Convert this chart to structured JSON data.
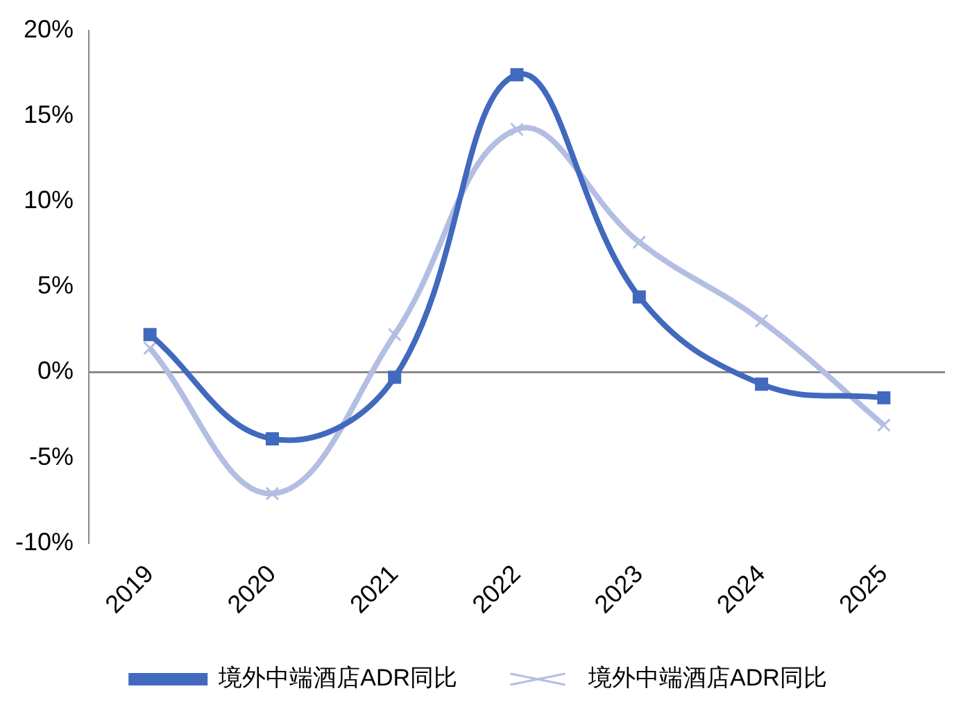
{
  "chart_data": {
    "type": "line",
    "categories": [
      "2019",
      "2020",
      "2021",
      "2022",
      "2023",
      "2024",
      "2025"
    ],
    "series": [
      {
        "name": "境外中端酒店ADR同比",
        "color": "#4169be",
        "marker": "square",
        "values": [
          2.2,
          -3.9,
          -0.3,
          17.4,
          4.4,
          -0.7,
          -1.5
        ]
      },
      {
        "name": "境外中端酒店ADR同比",
        "color": "#b4bee2",
        "marker": "cross",
        "values": [
          1.4,
          -7.1,
          2.2,
          14.2,
          7.6,
          3.0,
          -3.1
        ]
      }
    ],
    "ylim": [
      -10,
      20
    ],
    "yticks": [
      {
        "value": -10,
        "label": "-10%"
      },
      {
        "value": -5,
        "label": "-5%"
      },
      {
        "value": 0,
        "label": "0%"
      },
      {
        "value": 5,
        "label": "5%"
      },
      {
        "value": 10,
        "label": "10%"
      },
      {
        "value": 15,
        "label": "15%"
      },
      {
        "value": 20,
        "label": "20%"
      }
    ],
    "ref_lines": [
      {
        "axis": "y",
        "value": 0,
        "color": "#888888"
      }
    ],
    "grid": false,
    "legend": "bottom"
  }
}
